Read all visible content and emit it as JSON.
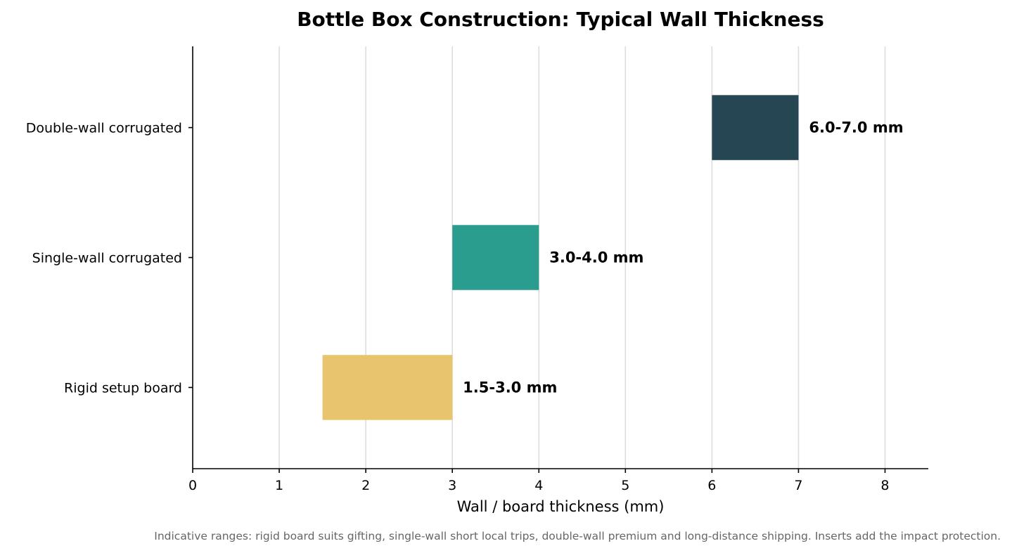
{
  "chart_data": {
    "type": "bar",
    "orientation": "horizontal",
    "bar_style": "floating-range",
    "title": "Bottle Box Construction: Typical Wall Thickness",
    "xlabel": "Wall / board thickness (mm)",
    "ylabel": "",
    "xlim": [
      0,
      8.5
    ],
    "xticks": [
      "0",
      "1",
      "2",
      "3",
      "4",
      "5",
      "6",
      "7",
      "8"
    ],
    "grid": "vertical",
    "categories": [
      "Rigid setup board",
      "Single-wall corrugated",
      "Double-wall corrugated"
    ],
    "ranges": [
      {
        "start": 1.5,
        "end": 3.0
      },
      {
        "start": 3.0,
        "end": 4.0
      },
      {
        "start": 6.0,
        "end": 7.0
      }
    ],
    "data_labels": [
      "1.5-3.0 mm",
      "3.0-4.0 mm",
      "6.0-7.0 mm"
    ],
    "colors": [
      "#e8c46c",
      "#2a9d8f",
      "#264653"
    ],
    "footnote": "Indicative ranges: rigid board suits gifting, single-wall short local trips, double-wall premium and long-distance shipping. Inserts add the impact protection."
  }
}
